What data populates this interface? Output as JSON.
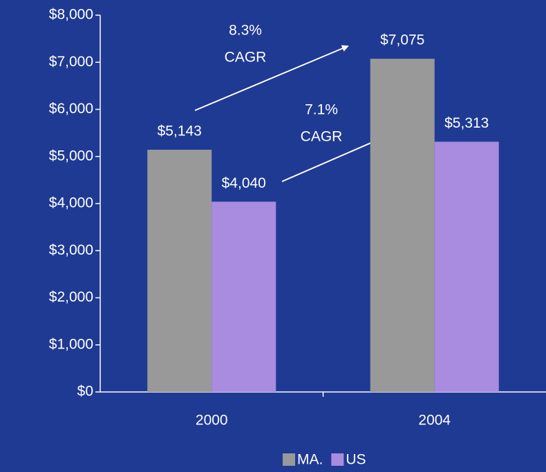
{
  "chart_data": {
    "type": "bar",
    "categories": [
      "2000",
      "2004"
    ],
    "series": [
      {
        "name": "MA.",
        "color": "#999999",
        "values": [
          5143,
          7075
        ],
        "value_labels": [
          "$5,143",
          "$7,075"
        ]
      },
      {
        "name": "US",
        "color": "#a98be0",
        "values": [
          4040,
          5313
        ],
        "value_labels": [
          "$4,040",
          "$5,313"
        ]
      }
    ],
    "ylim": [
      0,
      8000
    ],
    "yticks": [
      {
        "value": 0,
        "label": "$0"
      },
      {
        "value": 1000,
        "label": "$1,000"
      },
      {
        "value": 2000,
        "label": "$2,000"
      },
      {
        "value": 3000,
        "label": "$3,000"
      },
      {
        "value": 4000,
        "label": "$4,000"
      },
      {
        "value": 5000,
        "label": "$5,000"
      },
      {
        "value": 6000,
        "label": "$6,000"
      },
      {
        "value": 7000,
        "label": "$7,000"
      },
      {
        "value": 8000,
        "label": "$8,000"
      }
    ],
    "annotations": [
      {
        "lines": [
          "8.3%",
          "CAGR"
        ]
      },
      {
        "lines": [
          "7.1%",
          "CAGR"
        ]
      }
    ],
    "legend": "bottom"
  }
}
